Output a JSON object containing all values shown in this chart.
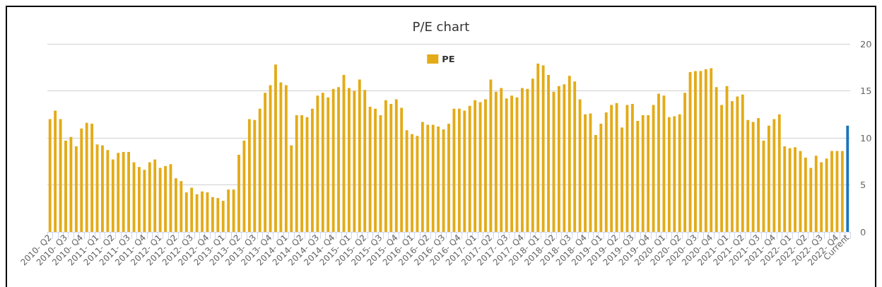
{
  "chart_data": {
    "type": "bar",
    "title": "P/E chart",
    "categories": [
      "2010- Q2",
      null,
      null,
      "2010- Q3",
      null,
      null,
      "2010- Q4",
      null,
      null,
      "2011- Q1",
      null,
      null,
      "2011- Q2",
      null,
      null,
      "2011- Q3",
      null,
      null,
      "2011- Q4",
      null,
      null,
      "2012- Q1",
      null,
      null,
      "2012- Q2",
      null,
      null,
      "2012- Q3",
      null,
      null,
      "2012- Q4",
      null,
      null,
      "2013- Q1",
      null,
      null,
      "2013- Q2",
      null,
      null,
      "2013- Q3",
      null,
      null,
      "2013- Q4",
      null,
      null,
      "2014- Q1",
      null,
      null,
      "2014- Q2",
      null,
      null,
      "2014- Q3",
      null,
      null,
      "2014- Q4",
      null,
      null,
      "2015- Q1",
      null,
      null,
      "2015- Q2",
      null,
      null,
      "2015- Q3",
      null,
      null,
      "2015- Q4",
      null,
      null,
      "2016- Q1",
      null,
      null,
      "2016- Q2",
      null,
      null,
      "2016- Q3",
      null,
      null,
      "2016- Q4",
      null,
      null,
      "2017- Q1",
      null,
      null,
      "2017- Q2",
      null,
      null,
      "2017- Q3",
      null,
      null,
      "2017- Q4",
      null,
      null,
      "2018- Q1",
      null,
      null,
      "2018- Q2",
      null,
      null,
      "2018- Q3",
      null,
      null,
      "2018- Q4",
      null,
      null,
      "2019- Q1",
      null,
      null,
      "2019- Q2",
      null,
      null,
      "2019- Q3",
      null,
      null,
      "2019- Q4",
      null,
      null,
      "2020- Q1",
      null,
      null,
      "2020- Q2",
      null,
      null,
      "2020- Q3",
      null,
      null,
      "2020- Q4",
      null,
      null,
      "2021- Q1",
      null,
      null,
      "2021- Q2",
      null,
      null,
      "2021- Q3",
      null,
      null,
      "2021- Q4",
      null,
      null,
      "2022- Q1",
      null,
      null,
      "2022- Q2",
      null,
      null,
      "2022- Q3",
      null,
      null,
      "2022- Q4",
      null,
      "Current"
    ],
    "series": [
      {
        "name": "PE",
        "color": "#e3ab17",
        "colors": [
          "#e3ab17",
          "#e3ab17",
          "#e3ab17",
          "#e3ab17",
          "#e3ab17",
          "#e3ab17",
          "#e3ab17",
          "#e3ab17",
          "#e3ab17",
          "#e3ab17",
          "#e3ab17",
          "#e3ab17",
          "#e3ab17",
          "#e3ab17",
          "#e3ab17",
          "#e3ab17",
          "#e3ab17",
          "#e3ab17",
          "#e3ab17",
          "#e3ab17",
          "#e3ab17",
          "#e3ab17",
          "#e3ab17",
          "#e3ab17",
          "#e3ab17",
          "#e3ab17",
          "#e3ab17",
          "#e3ab17",
          "#e3ab17",
          "#e3ab17",
          "#e3ab17",
          "#e3ab17",
          "#e3ab17",
          "#e3ab17",
          "#e3ab17",
          "#e3ab17",
          "#e3ab17",
          "#e3ab17",
          "#e3ab17",
          "#e3ab17",
          "#e3ab17",
          "#e3ab17",
          "#e3ab17",
          "#e3ab17",
          "#e3ab17",
          "#e3ab17",
          "#e3ab17",
          "#e3ab17",
          "#e3ab17",
          "#e3ab17",
          "#e3ab17",
          "#e3ab17",
          "#e3ab17",
          "#e3ab17",
          "#e3ab17",
          "#e3ab17",
          "#e3ab17",
          "#e3ab17",
          "#e3ab17",
          "#e3ab17",
          "#e3ab17",
          "#e3ab17",
          "#e3ab17",
          "#e3ab17",
          "#e3ab17",
          "#e3ab17",
          "#e3ab17",
          "#e3ab17",
          "#e3ab17",
          "#e3ab17",
          "#e3ab17",
          "#e3ab17",
          "#e3ab17",
          "#e3ab17",
          "#e3ab17",
          "#e3ab17",
          "#e3ab17",
          "#e3ab17",
          "#e3ab17",
          "#e3ab17",
          "#e3ab17",
          "#e3ab17",
          "#e3ab17",
          "#e3ab17",
          "#e3ab17",
          "#e3ab17",
          "#e3ab17",
          "#e3ab17",
          "#e3ab17",
          "#e3ab17",
          "#e3ab17",
          "#e3ab17",
          "#e3ab17",
          "#e3ab17",
          "#e3ab17",
          "#e3ab17",
          "#e3ab17",
          "#e3ab17",
          "#e3ab17",
          "#e3ab17",
          "#e3ab17",
          "#e3ab17",
          "#e3ab17",
          "#e3ab17",
          "#e3ab17",
          "#e3ab17",
          "#e3ab17",
          "#e3ab17",
          "#e3ab17",
          "#e3ab17",
          "#e3ab17",
          "#e3ab17",
          "#e3ab17",
          "#e3ab17",
          "#e3ab17",
          "#e3ab17",
          "#e3ab17",
          "#e3ab17",
          "#e3ab17",
          "#e3ab17",
          "#e3ab17",
          "#e3ab17",
          "#e3ab17",
          "#e3ab17",
          "#e3ab17",
          "#e3ab17",
          "#e3ab17",
          "#e3ab17",
          "#e3ab17",
          "#e3ab17",
          "#e3ab17",
          "#e3ab17",
          "#e3ab17",
          "#e3ab17",
          "#e3ab17",
          "#e3ab17",
          "#e3ab17",
          "#e3ab17",
          "#e3ab17",
          "#e3ab17",
          "#e3ab17",
          "#e3ab17",
          "#e3ab17",
          "#e3ab17",
          "#e3ab17",
          "#e3ab17",
          "#e3ab17",
          "#e3ab17",
          "#e3ab17",
          "#e3ab17",
          "#e3ab17",
          "#e3ab17",
          "#1b75bb"
        ],
        "values": [
          12.0,
          12.9,
          12.0,
          9.7,
          10.1,
          9.1,
          11.0,
          11.6,
          11.5,
          9.3,
          9.2,
          8.7,
          7.7,
          8.4,
          8.5,
          8.5,
          7.4,
          6.9,
          6.6,
          7.4,
          7.7,
          6.8,
          7.0,
          7.2,
          5.7,
          5.4,
          4.2,
          4.7,
          4.0,
          4.3,
          4.2,
          3.7,
          3.6,
          3.3,
          4.5,
          4.5,
          8.2,
          9.7,
          12.0,
          11.9,
          13.1,
          14.8,
          15.6,
          17.8,
          15.9,
          15.6,
          9.2,
          12.4,
          12.4,
          12.2,
          13.1,
          14.5,
          14.8,
          14.3,
          15.2,
          15.4,
          16.7,
          15.3,
          15.0,
          16.2,
          15.1,
          13.3,
          13.1,
          12.4,
          14.0,
          13.6,
          14.1,
          13.2,
          10.8,
          10.4,
          10.2,
          11.7,
          11.4,
          11.4,
          11.2,
          10.9,
          11.5,
          13.1,
          13.1,
          12.9,
          13.4,
          14.0,
          13.8,
          14.1,
          16.2,
          14.9,
          15.3,
          14.2,
          14.5,
          14.3,
          15.3,
          15.2,
          16.3,
          17.9,
          17.7,
          16.7,
          14.9,
          15.5,
          15.7,
          16.6,
          16.0,
          14.1,
          12.5,
          12.6,
          10.3,
          11.5,
          12.7,
          13.5,
          13.7,
          11.1,
          13.5,
          13.6,
          11.8,
          12.4,
          12.4,
          13.5,
          14.7,
          14.5,
          12.2,
          12.3,
          12.5,
          14.8,
          17.0,
          17.1,
          17.1,
          17.3,
          17.4,
          15.4,
          13.5,
          15.5,
          13.9,
          14.4,
          14.6,
          11.9,
          11.7,
          12.1,
          9.7,
          11.3,
          12.0,
          12.5,
          9.1,
          8.9,
          9.0,
          8.6,
          7.9,
          6.8,
          8.1,
          7.4,
          7.8,
          8.6,
          8.6,
          8.6,
          11.3
        ]
      }
    ],
    "ylim": [
      0,
      20
    ],
    "yticks": [
      0,
      5,
      10,
      15,
      20
    ],
    "grid": "y",
    "legend": "top"
  }
}
